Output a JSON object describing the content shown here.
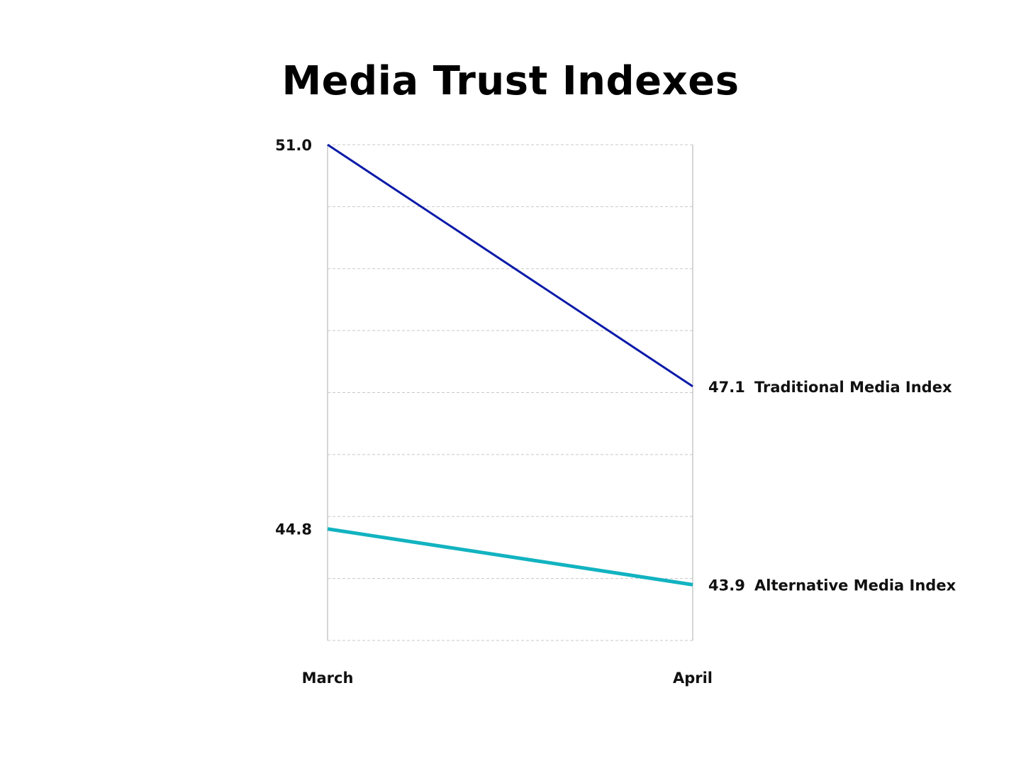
{
  "title": "Media Trust Indexes",
  "chart_data": {
    "type": "line",
    "title": "Media Trust Indexes",
    "categories": [
      "March",
      "April"
    ],
    "series": [
      {
        "name": "Traditional Media Index",
        "values": [
          51.0,
          47.1
        ],
        "color": "#0a1aa8"
      },
      {
        "name": "Alternative Media Index",
        "values": [
          44.8,
          43.9
        ],
        "color": "#12b3c0"
      }
    ],
    "start_labels": [
      "51.0",
      "44.8"
    ],
    "end_labels": [
      "47.1",
      "43.9"
    ],
    "ylim": [
      43.0,
      51.0
    ],
    "grid": true,
    "grid_style": "dashed",
    "xlabel": "",
    "ylabel": ""
  }
}
